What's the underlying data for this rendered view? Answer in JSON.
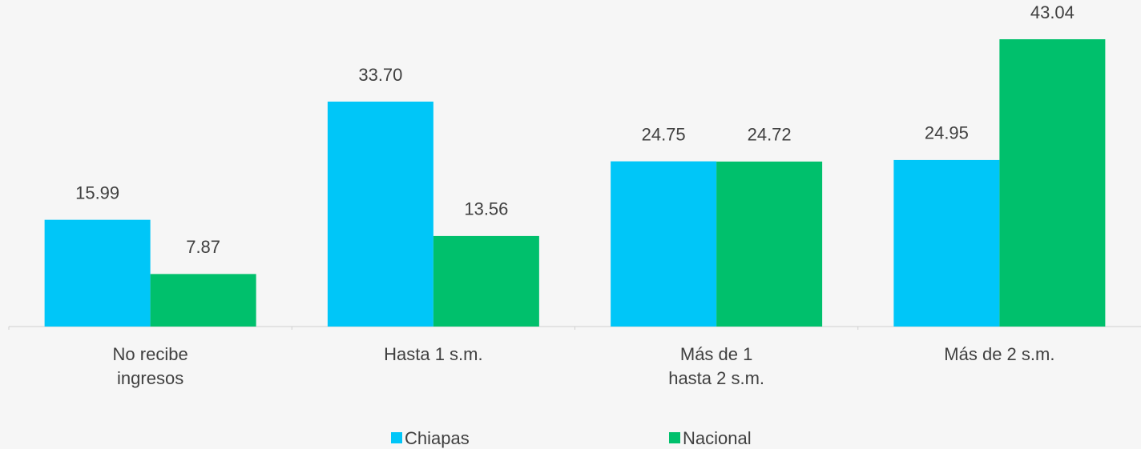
{
  "chart_data": {
    "type": "bar",
    "categories": [
      [
        "No recibe",
        "ingresos"
      ],
      [
        "Hasta 1 s.m."
      ],
      [
        "Más de 1",
        "hasta 2 s.m."
      ],
      [
        "Más de 2 s.m."
      ]
    ],
    "series": [
      {
        "name": "Chiapas",
        "color": "#00c6f8",
        "values": [
          15.99,
          33.7,
          24.75,
          24.95
        ],
        "value_labels": [
          "15.99",
          "33.70",
          "24.75",
          "24.95"
        ]
      },
      {
        "name": "Nacional",
        "color": "#00c06c",
        "values": [
          7.87,
          13.56,
          24.72,
          43.04
        ],
        "value_labels": [
          "7.87",
          "13.56",
          "24.72",
          "43.04"
        ]
      }
    ],
    "ylim": [
      0,
      45
    ],
    "legend": "bottom"
  }
}
